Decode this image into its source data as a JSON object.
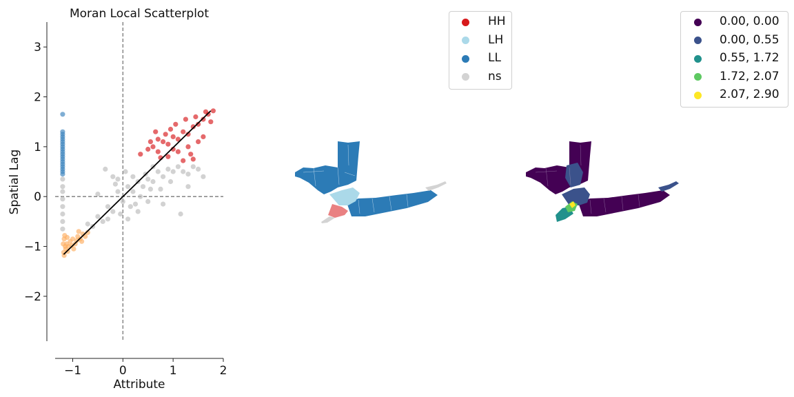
{
  "chart_data": [
    {
      "type": "scatter",
      "title": "Moran Local Scatterplot",
      "xlabel": "Attribute",
      "ylabel": "Spatial Lag",
      "xlim": [
        -1.35,
        2.0
      ],
      "ylim": [
        -2.9,
        3.5
      ],
      "xticks": [
        -1,
        0,
        1,
        2
      ],
      "xtick_labels": [
        "−1",
        "0",
        "1",
        "2"
      ],
      "yticks": [
        -2,
        -1,
        0,
        1,
        2,
        3
      ],
      "ytick_labels": [
        "−2",
        "−1",
        "0",
        "1",
        "2",
        "3"
      ],
      "reference_lines": {
        "x": 0,
        "y": 0
      },
      "fit_line": {
        "x": [
          -1.18,
          1.75
        ],
        "y": [
          -1.16,
          1.72
        ]
      },
      "series": [
        {
          "name": "HH (Q1)",
          "color": "#d7191c",
          "points": [
            [
              0.35,
              0.85
            ],
            [
              0.5,
              0.95
            ],
            [
              0.6,
              1.0
            ],
            [
              0.7,
              0.9
            ],
            [
              0.8,
              1.1
            ],
            [
              0.9,
              1.05
            ],
            [
              1.0,
              1.2
            ],
            [
              1.1,
              1.15
            ],
            [
              1.2,
              1.3
            ],
            [
              1.3,
              1.25
            ],
            [
              1.4,
              1.4
            ],
            [
              1.5,
              1.45
            ],
            [
              1.6,
              1.55
            ],
            [
              1.7,
              1.65
            ],
            [
              1.8,
              1.72
            ],
            [
              0.9,
              0.8
            ],
            [
              1.1,
              0.9
            ],
            [
              1.3,
              1.0
            ],
            [
              1.5,
              1.1
            ],
            [
              1.4,
              0.75
            ],
            [
              1.2,
              0.72
            ],
            [
              0.95,
              1.35
            ],
            [
              0.85,
              1.25
            ],
            [
              1.05,
              1.45
            ],
            [
              1.25,
              1.55
            ],
            [
              1.45,
              1.6
            ],
            [
              1.65,
              1.7
            ],
            [
              0.55,
              1.1
            ],
            [
              0.7,
              1.15
            ],
            [
              0.75,
              0.78
            ],
            [
              1.6,
              1.2
            ],
            [
              1.75,
              1.5
            ],
            [
              1.35,
              0.85
            ],
            [
              1.0,
              0.95
            ],
            [
              0.65,
              1.3
            ]
          ]
        },
        {
          "name": "LL (Q3)",
          "color": "#fdae61",
          "points": [
            [
              -1.18,
              -1.12
            ],
            [
              -1.15,
              -1.0
            ],
            [
              -1.12,
              -0.95
            ],
            [
              -1.1,
              -1.1
            ],
            [
              -1.05,
              -0.9
            ],
            [
              -1.0,
              -0.85
            ],
            [
              -0.95,
              -0.95
            ],
            [
              -0.9,
              -0.8
            ],
            [
              -0.85,
              -0.85
            ],
            [
              -0.8,
              -0.75
            ],
            [
              -0.75,
              -0.8
            ],
            [
              -0.7,
              -0.72
            ],
            [
              -1.17,
              -0.85
            ],
            [
              -1.16,
              -0.78
            ],
            [
              -1.14,
              -1.05
            ],
            [
              -1.08,
              -1.0
            ],
            [
              -1.02,
              -0.98
            ],
            [
              -0.98,
              -1.05
            ],
            [
              -0.92,
              -0.88
            ],
            [
              -1.17,
              -1.18
            ],
            [
              -0.82,
              -0.9
            ],
            [
              -0.88,
              -0.7
            ],
            [
              -1.19,
              -0.95
            ],
            [
              -1.11,
              -0.82
            ]
          ]
        },
        {
          "name": "LH (Q2)",
          "color": "#3a82bd",
          "points": [
            [
              -1.2,
              1.65
            ],
            [
              -1.2,
              1.3
            ],
            [
              -1.2,
              1.25
            ],
            [
              -1.2,
              1.2
            ],
            [
              -1.2,
              1.15
            ],
            [
              -1.2,
              1.1
            ],
            [
              -1.2,
              1.05
            ],
            [
              -1.2,
              1.0
            ],
            [
              -1.2,
              0.95
            ],
            [
              -1.2,
              0.9
            ],
            [
              -1.2,
              0.85
            ],
            [
              -1.2,
              0.8
            ],
            [
              -1.2,
              0.75
            ],
            [
              -1.2,
              0.7
            ],
            [
              -1.2,
              0.65
            ],
            [
              -1.2,
              0.6
            ],
            [
              -1.2,
              0.55
            ],
            [
              -1.2,
              0.5
            ],
            [
              -1.2,
              0.45
            ]
          ]
        },
        {
          "name": "ns",
          "color": "#bababa",
          "points": [
            [
              -0.5,
              -0.4
            ],
            [
              -0.3,
              -0.2
            ],
            [
              -0.2,
              -0.3
            ],
            [
              -0.1,
              0.1
            ],
            [
              0.0,
              -0.1
            ],
            [
              0.1,
              0.2
            ],
            [
              0.2,
              0.1
            ],
            [
              0.3,
              0.3
            ],
            [
              0.4,
              0.2
            ],
            [
              0.5,
              0.35
            ],
            [
              0.6,
              0.3
            ],
            [
              0.7,
              0.5
            ],
            [
              0.8,
              0.4
            ],
            [
              0.9,
              0.55
            ],
            [
              1.0,
              0.5
            ],
            [
              1.1,
              0.6
            ],
            [
              1.2,
              0.5
            ],
            [
              1.3,
              0.45
            ],
            [
              1.4,
              0.6
            ],
            [
              1.5,
              0.55
            ],
            [
              -0.4,
              -0.5
            ],
            [
              -0.6,
              -0.6
            ],
            [
              -0.7,
              -0.55
            ],
            [
              0.15,
              -0.2
            ],
            [
              0.25,
              -0.15
            ],
            [
              0.5,
              -0.1
            ],
            [
              0.8,
              -0.15
            ],
            [
              1.15,
              -0.35
            ],
            [
              0.75,
              0.15
            ],
            [
              0.95,
              0.3
            ],
            [
              -0.35,
              0.55
            ],
            [
              -0.2,
              0.4
            ],
            [
              -0.1,
              0.35
            ],
            [
              0.05,
              0.5
            ],
            [
              -0.15,
              0.25
            ],
            [
              -0.5,
              0.05
            ],
            [
              -0.3,
              -0.45
            ],
            [
              0.35,
              0.0
            ],
            [
              -1.2,
              0.35
            ],
            [
              -1.2,
              0.2
            ],
            [
              -1.2,
              0.1
            ],
            [
              -1.2,
              -0.05
            ],
            [
              -1.2,
              -0.2
            ],
            [
              -1.2,
              -0.35
            ],
            [
              -1.2,
              -0.5
            ],
            [
              -1.2,
              -0.65
            ],
            [
              0.6,
              0.6
            ],
            [
              0.2,
              0.4
            ],
            [
              1.3,
              0.2
            ],
            [
              1.6,
              0.4
            ],
            [
              0.45,
              0.45
            ],
            [
              0.55,
              0.15
            ],
            [
              -0.05,
              -0.35
            ],
            [
              0.1,
              -0.45
            ],
            [
              0.3,
              -0.3
            ]
          ]
        }
      ]
    }
  ],
  "map_legend_1": {
    "title": "",
    "items": [
      {
        "label": "HH",
        "color": "#d7191c"
      },
      {
        "label": "LH",
        "color": "#abd9e9"
      },
      {
        "label": "LL",
        "color": "#2c7bb6"
      },
      {
        "label": "ns",
        "color": "#d3d3d3"
      }
    ]
  },
  "map_legend_2": {
    "title": "",
    "items": [
      {
        "label": "0.00, 0.00",
        "color": "#440154"
      },
      {
        "label": "0.00, 0.55",
        "color": "#3b528b"
      },
      {
        "label": "0.55, 1.72",
        "color": "#21918c"
      },
      {
        "label": "1.72, 2.07",
        "color": "#5ec962"
      },
      {
        "label": "2.07, 2.90",
        "color": "#fde725"
      }
    ]
  },
  "maps": {
    "cluster_map": {
      "base_color": "#2c7bb6",
      "hot_color": "#d7191c",
      "light_color": "#abd9e9",
      "ns_color": "#d3d3d3"
    },
    "value_map": {
      "base_color": "#440154",
      "mid_color": "#3b528b",
      "teal_color": "#21918c",
      "green_color": "#5ec962",
      "yellow_color": "#fde725"
    }
  }
}
